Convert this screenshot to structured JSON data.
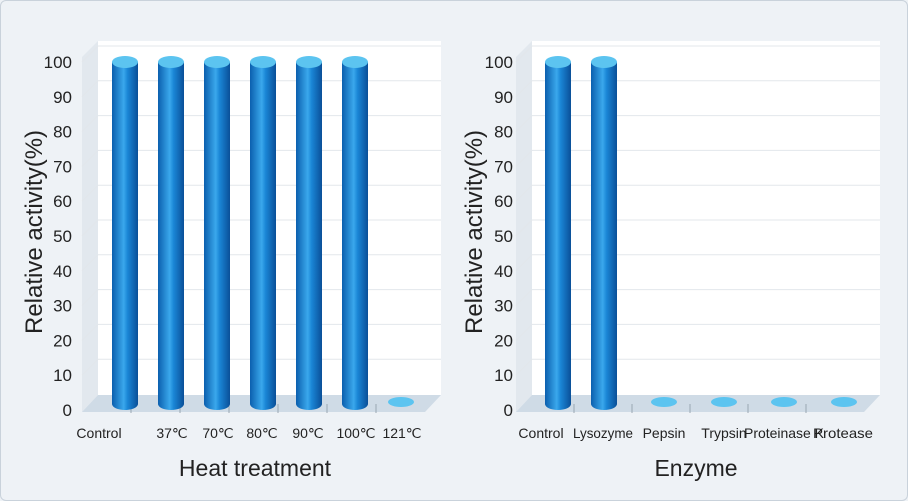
{
  "chart_data": [
    {
      "type": "bar",
      "title": "",
      "xlabel": "Heat treatment",
      "ylabel": "Relative activity(%)",
      "categories": [
        "Control",
        "37℃",
        "70℃",
        "80℃",
        "90℃",
        "100℃",
        "121℃"
      ],
      "values": [
        100,
        100,
        100,
        100,
        100,
        100,
        0
      ],
      "ylim": [
        0,
        100
      ],
      "yticks": [
        "0",
        "10",
        "20",
        "30",
        "40",
        "50",
        "60",
        "70",
        "80",
        "90",
        "100"
      ],
      "grid": true,
      "legend": "none"
    },
    {
      "type": "bar",
      "title": "",
      "xlabel": "Enzyme",
      "ylabel": "Relative activity(%)",
      "categories": [
        "Control",
        "Lysozyme",
        "Pepsin",
        "Trypsin",
        "Proteinase K",
        "Protease"
      ],
      "values": [
        100,
        100,
        0,
        0,
        0,
        0
      ],
      "ylim": [
        0,
        100
      ],
      "yticks": [
        "0",
        "10",
        "20",
        "30",
        "40",
        "50",
        "60",
        "70",
        "80",
        "90",
        "100"
      ],
      "grid": true,
      "legend": "none"
    }
  ],
  "colors": {
    "bar_dark": "#0b5fae",
    "bar_mid": "#1a86d6",
    "bar_light": "#38a6ea",
    "bar_top": "#5cc4f0",
    "floor": "#cfdbe6",
    "wall": "#ffffff",
    "side_wall": "#e2e8ee",
    "grid": "#e3e7eb"
  }
}
